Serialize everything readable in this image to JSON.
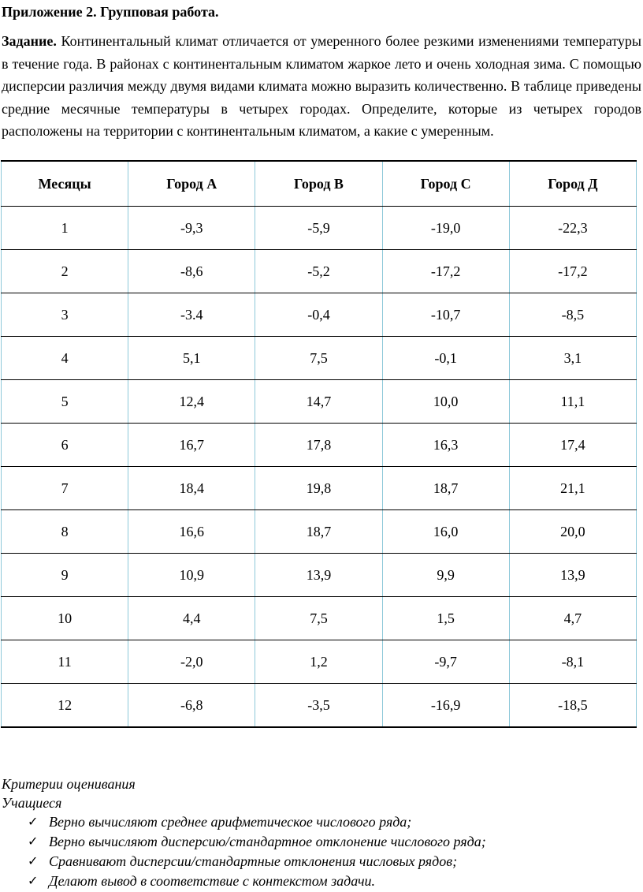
{
  "heading": "Приложение 2. Групповая работа.",
  "task": {
    "label": "Задание.",
    "text": " Континентальный климат отличается от умеренного более резкими изменениями температуры в течение года. В районах с континентальным климатом жаркое лето и очень холодная зима. С помощью дисперсии различия между двумя видами климата можно выразить количественно. В таблице приведены средние месячные температуры в четырех городах. Определите, которые из четырех городов расположены на территории с континентальным климатом, а какие с умеренным."
  },
  "table": {
    "headers": [
      "Месяцы",
      "Город А",
      "Город В",
      "Город С",
      "Город Д"
    ],
    "rows": [
      [
        "1",
        "-9,3",
        "-5,9",
        "-19,0",
        "-22,3"
      ],
      [
        "2",
        "-8,6",
        "-5,2",
        "-17,2",
        "-17,2"
      ],
      [
        "3",
        "-3.4",
        "-0,4",
        "-10,7",
        "-8,5"
      ],
      [
        "4",
        "5,1",
        "7,5",
        "-0,1",
        "3,1"
      ],
      [
        "5",
        "12,4",
        "14,7",
        "10,0",
        "11,1"
      ],
      [
        "6",
        "16,7",
        "17,8",
        "16,3",
        "17,4"
      ],
      [
        "7",
        "18,4",
        "19,8",
        "18,7",
        "21,1"
      ],
      [
        "8",
        "16,6",
        "18,7",
        "16,0",
        "20,0"
      ],
      [
        "9",
        "10,9",
        "13,9",
        "9,9",
        "13,9"
      ],
      [
        "10",
        "4,4",
        "7,5",
        "1,5",
        "4,7"
      ],
      [
        "11",
        "-2,0",
        "1,2",
        "-9,7",
        "-8,1"
      ],
      [
        "12",
        "-6,8",
        "-3,5",
        "-16,9",
        "-18,5"
      ]
    ]
  },
  "criteria": {
    "title": "Критерии оценивания",
    "subtitle": "Учащиеся",
    "bullet_icon": "check-icon",
    "items": [
      "Верно вычисляют среднее арифметическое числового ряда;",
      "Верно вычисляют дисперсию/стандартное отклонение числового ряда;",
      "Сравнивают дисперсии/стандартные отклонения числовых рядов;",
      "Делают вывод в соответствие с контекстом задачи."
    ]
  }
}
